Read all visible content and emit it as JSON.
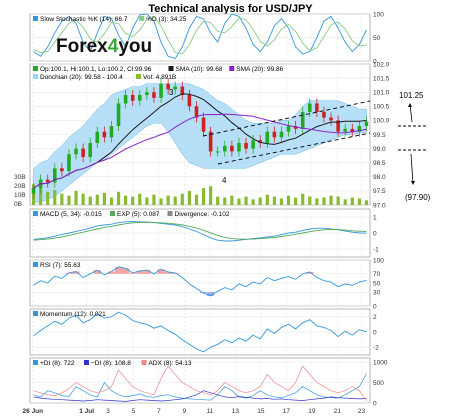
{
  "title": "Technical analysis for USD/JPY",
  "logo": {
    "text_a": "Forex",
    "text_b": "4",
    "text_c": "you"
  },
  "annotations": {
    "wave3": "3",
    "wave4": "4",
    "target_up": "101.25",
    "target_down": "(97.90)"
  },
  "colors": {
    "candle_up": "#22aa22",
    "candle_down": "#cc2222",
    "donchian_band": "#9fd6f5",
    "sma10": "#1a1a1a",
    "sma20": "#8822cc",
    "volume": "#88bb33",
    "stoch_k": "#3399dd",
    "stoch_d": "#88cc88",
    "macd": "#3399dd",
    "macd_sig": "#55aa55",
    "rsi": "#3399dd",
    "momentum": "#3399dd",
    "pdi": "#3399dd",
    "mdi": "#3333cc",
    "adx": "#ee8888"
  },
  "chart_data": [
    {
      "type": "line",
      "panel": "stochastic",
      "legend": [
        "Slow Stochastic %K (14): 66.7",
        "%D (3): 34.25"
      ],
      "yticks": [
        "100",
        "50",
        "0"
      ],
      "ylim": [
        0,
        100
      ],
      "series": [
        {
          "name": "%K",
          "values": [
            20,
            10,
            30,
            60,
            85,
            95,
            80,
            40,
            20,
            60,
            95,
            90,
            55,
            30,
            70,
            98,
            100,
            85,
            40,
            10,
            5,
            30,
            70,
            95,
            90,
            60,
            40,
            80,
            100,
            95,
            70,
            35,
            20,
            40,
            75,
            90,
            70,
            30,
            15,
            20,
            50,
            85,
            95,
            70,
            40,
            20,
            35,
            66.7
          ]
        },
        {
          "name": "%D",
          "values": [
            25,
            18,
            20,
            40,
            60,
            80,
            87,
            72,
            47,
            40,
            58,
            82,
            80,
            58,
            52,
            66,
            89,
            94,
            75,
            45,
            18,
            15,
            35,
            65,
            85,
            82,
            63,
            60,
            73,
            92,
            88,
            67,
            42,
            32,
            45,
            68,
            78,
            63,
            38,
            22,
            28,
            52,
            77,
            83,
            68,
            43,
            32,
            34.25
          ]
        }
      ]
    },
    {
      "type": "candlestick",
      "panel": "price",
      "legend": [
        "Op:100.1, Hi:100.1, Lo:100.2, Cl:99.96",
        "SMA (10): 99.68",
        "SMA (20): 99.86",
        "Donchian (20): 99.58 - 100.4",
        "Vol: 4.891B"
      ],
      "yticks": [
        "102.0",
        "101.5",
        "101.0",
        "100.5",
        "100.0",
        "99.5",
        "99.0",
        "98.5",
        "98.0",
        "97.5",
        "97.0"
      ],
      "ylim": [
        97.0,
        102.0
      ],
      "volume_ticks": [
        "30B",
        "20B",
        "10B",
        "0B"
      ],
      "x_tick_labels": [
        "26 Jun",
        "1 Jul",
        "3",
        "5",
        "7",
        "9",
        "11",
        "13",
        "15",
        "17",
        "19",
        "21",
        "23"
      ],
      "close": [
        97.6,
        97.9,
        97.8,
        98.3,
        98.2,
        98.8,
        99.0,
        98.7,
        99.2,
        99.6,
        99.4,
        99.8,
        100.6,
        100.9,
        100.7,
        100.9,
        101.0,
        100.8,
        101.3,
        101.1,
        101.2,
        100.9,
        100.5,
        100.1,
        99.6,
        98.9,
        98.9,
        99.1,
        98.9,
        99.2,
        99.0,
        99.3,
        99.2,
        99.6,
        99.4,
        99.6,
        99.8,
        99.7,
        100.3,
        100.6,
        100.3,
        100.1,
        100.0,
        99.6,
        99.7,
        99.6,
        99.8,
        99.96
      ],
      "donchian_upper": [
        98.3,
        98.5,
        98.6,
        98.9,
        99.1,
        99.4,
        99.6,
        99.8,
        100.1,
        100.4,
        100.6,
        100.9,
        101.0,
        101.1,
        101.2,
        101.2,
        101.3,
        101.3,
        101.3,
        101.3,
        101.3,
        101.3,
        101.3,
        101.2,
        101.1,
        100.9,
        100.7,
        100.6,
        100.4,
        100.2,
        100.0,
        99.9,
        99.9,
        99.9,
        99.9,
        100.0,
        100.0,
        100.2,
        100.5,
        100.7,
        100.7,
        100.7,
        100.7,
        100.7,
        100.6,
        100.5,
        100.4,
        100.4
      ],
      "donchian_lower": [
        97.1,
        97.1,
        97.2,
        97.3,
        97.5,
        97.7,
        97.9,
        98.1,
        98.3,
        98.5,
        98.6,
        98.8,
        99.0,
        99.2,
        99.4,
        99.6,
        99.8,
        99.9,
        99.9,
        99.6,
        99.2,
        98.8,
        98.5,
        98.4,
        98.3,
        98.3,
        98.3,
        98.3,
        98.3,
        98.3,
        98.3,
        98.4,
        98.5,
        98.6,
        98.7,
        98.8,
        98.8,
        98.8,
        98.9,
        99.0,
        99.1,
        99.2,
        99.3,
        99.4,
        99.5,
        99.5,
        99.55,
        99.58
      ],
      "volume": [
        22,
        18,
        14,
        16,
        12,
        10,
        15,
        12,
        9,
        11,
        13,
        8,
        14,
        10,
        9,
        12,
        8,
        11,
        7,
        10,
        9,
        12,
        15,
        11,
        18,
        20,
        9,
        8,
        10,
        7,
        9,
        6,
        8,
        11,
        9,
        7,
        10,
        8,
        12,
        9,
        7,
        8,
        10,
        9,
        6,
        8,
        7,
        5
      ]
    },
    {
      "type": "line",
      "panel": "macd",
      "legend": [
        "MACD (5, 34): -0.015",
        "EXP (5): 0.087",
        "Divergence: -0.102"
      ],
      "yticks": [
        "1",
        "0",
        "-1"
      ],
      "ylim": [
        -1.5,
        1.5
      ],
      "series": [
        {
          "name": "MACD",
          "values": [
            -0.4,
            -0.35,
            -0.3,
            -0.2,
            -0.1,
            0.0,
            0.1,
            0.2,
            0.3,
            0.45,
            0.5,
            0.55,
            0.65,
            0.7,
            0.72,
            0.7,
            0.68,
            0.65,
            0.6,
            0.55,
            0.5,
            0.4,
            0.25,
            0.1,
            -0.1,
            -0.3,
            -0.45,
            -0.5,
            -0.5,
            -0.45,
            -0.4,
            -0.35,
            -0.3,
            -0.25,
            -0.2,
            -0.1,
            0.0,
            0.05,
            0.15,
            0.25,
            0.3,
            0.3,
            0.25,
            0.2,
            0.12,
            0.05,
            0.0,
            -0.015
          ]
        },
        {
          "name": "EXP",
          "values": [
            -0.45,
            -0.42,
            -0.38,
            -0.32,
            -0.25,
            -0.15,
            -0.05,
            0.05,
            0.15,
            0.25,
            0.35,
            0.42,
            0.5,
            0.58,
            0.63,
            0.66,
            0.67,
            0.66,
            0.64,
            0.61,
            0.57,
            0.51,
            0.42,
            0.31,
            0.17,
            0.01,
            -0.15,
            -0.27,
            -0.35,
            -0.38,
            -0.39,
            -0.38,
            -0.35,
            -0.32,
            -0.28,
            -0.22,
            -0.15,
            -0.08,
            0.0,
            0.08,
            0.15,
            0.2,
            0.22,
            0.21,
            0.18,
            0.14,
            0.11,
            0.087
          ]
        }
      ]
    },
    {
      "type": "line",
      "panel": "rsi",
      "legend": [
        "RSI (7): 55.63"
      ],
      "yticks": [
        "100",
        "70",
        "50",
        "30",
        "0"
      ],
      "ylim": [
        0,
        100
      ],
      "series": [
        {
          "name": "RSI",
          "values": [
            45,
            55,
            50,
            65,
            60,
            72,
            75,
            62,
            70,
            78,
            68,
            75,
            85,
            82,
            72,
            76,
            78,
            70,
            80,
            74,
            72,
            62,
            48,
            38,
            28,
            22,
            32,
            40,
            35,
            48,
            42,
            52,
            48,
            62,
            55,
            60,
            64,
            58,
            70,
            74,
            62,
            55,
            52,
            42,
            48,
            45,
            52,
            55.63
          ]
        }
      ]
    },
    {
      "type": "line",
      "panel": "momentum",
      "legend": [
        "Momentum (12): 0.021"
      ],
      "yticks": [
        "2",
        "0",
        "-2"
      ],
      "ylim": [
        -3,
        3
      ],
      "series": [
        {
          "name": "Momentum",
          "values": [
            -0.5,
            0.2,
            0.8,
            1.4,
            1.0,
            1.8,
            2.2,
            1.2,
            1.6,
            2.4,
            1.8,
            2.0,
            2.6,
            2.2,
            1.5,
            1.2,
            1.0,
            0.5,
            0.8,
            0.2,
            -0.3,
            -1.0,
            -1.6,
            -2.2,
            -2.6,
            -2.0,
            -1.6,
            -1.0,
            -1.4,
            -0.8,
            -1.2,
            -0.4,
            -0.9,
            0.4,
            -0.2,
            0.6,
            1.0,
            0.4,
            1.2,
            1.6,
            0.8,
            0.6,
            0.2,
            -0.6,
            0.1,
            -0.4,
            0.3,
            0.021
          ]
        }
      ]
    },
    {
      "type": "line",
      "panel": "adx",
      "legend": [
        "+DI (8): 722",
        "−DI (8): 108.8",
        "ADX (8): 54.13"
      ],
      "yticks": [
        "1000",
        "500",
        "0"
      ],
      "ylim": [
        0,
        1100
      ],
      "series": [
        {
          "name": "+DI",
          "values": [
            200,
            150,
            300,
            250,
            180,
            160,
            400,
            300,
            200,
            150,
            500,
            300,
            200,
            150,
            180,
            220,
            160,
            140,
            180,
            200,
            150,
            120,
            100,
            90,
            80,
            70,
            200,
            400,
            300,
            150,
            120,
            180,
            300,
            200,
            150,
            130,
            180,
            250,
            400,
            300,
            200,
            150,
            130,
            120,
            200,
            300,
            400,
            722
          ]
        },
        {
          "name": "−DI",
          "values": [
            150,
            120,
            100,
            90,
            80,
            70,
            60,
            50,
            60,
            80,
            70,
            60,
            50,
            40,
            60,
            80,
            70,
            60,
            50,
            60,
            80,
            100,
            150,
            200,
            300,
            250,
            200,
            150,
            130,
            160,
            140,
            120,
            100,
            110,
            90,
            100,
            80,
            70,
            60,
            80,
            100,
            120,
            150,
            130,
            120,
            110,
            100,
            108.8
          ]
        },
        {
          "name": "ADX",
          "values": [
            300,
            250,
            200,
            180,
            250,
            350,
            500,
            400,
            300,
            250,
            300,
            400,
            800,
            600,
            400,
            300,
            250,
            200,
            600,
            900,
            700,
            500,
            400,
            300,
            250,
            200,
            300,
            500,
            400,
            300,
            250,
            300,
            400,
            700,
            500,
            400,
            300,
            500,
            900,
            700,
            500,
            400,
            300,
            250,
            300,
            400,
            300,
            54.13
          ]
        }
      ]
    }
  ]
}
